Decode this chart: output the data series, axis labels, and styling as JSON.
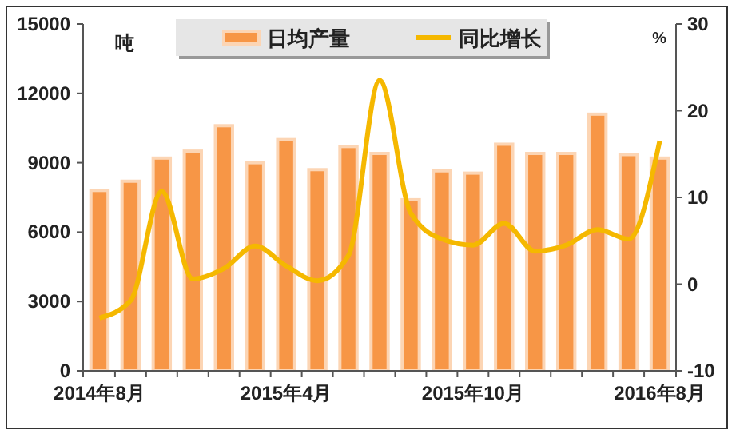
{
  "chart_data": {
    "type": "bar",
    "ylabel": "吨",
    "y2label": "%",
    "categories": [
      "2014年8月",
      null,
      null,
      null,
      null,
      null,
      "2015年4月",
      null,
      null,
      null,
      null,
      null,
      "2015年10月",
      null,
      null,
      null,
      null,
      null,
      "2016年8月"
    ],
    "series": [
      {
        "name": "日均产量",
        "color": "#f79646",
        "values": [
          7800,
          8200,
          9200,
          9500,
          10600,
          9000,
          10000,
          8700,
          9700,
          9400,
          7400,
          8650,
          8550,
          9800,
          9400,
          9400,
          11100,
          9350,
          9200
        ]
      },
      {
        "name": "同比增长",
        "type": "line",
        "axis": "y2",
        "color": "#f5b800",
        "values": [
          -3.9,
          -1.9,
          10.7,
          0.6,
          1.8,
          4.4,
          2.1,
          0.4,
          3.3,
          23.5,
          8.2,
          5.2,
          4.5,
          7.0,
          3.8,
          4.5,
          6.3,
          5.2,
          16.5
        ]
      }
    ],
    "ylim": [
      0,
      15000
    ],
    "yticks": [
      0,
      3000,
      6000,
      9000,
      12000,
      15000
    ],
    "y2lim": [
      -10,
      30
    ],
    "y2ticks": [
      -10,
      0,
      10,
      20,
      30
    ],
    "legend": "top",
    "grid": false,
    "marker": "none",
    "line_style": "solid"
  }
}
